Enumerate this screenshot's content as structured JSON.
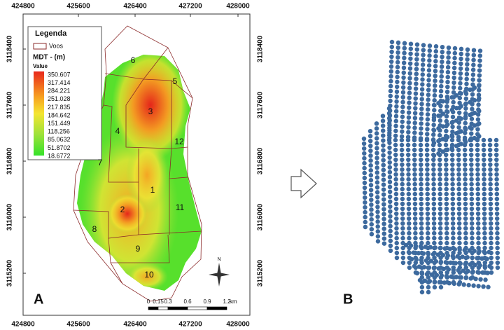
{
  "panel_a": {
    "label": "A",
    "x_ticks": [
      424800,
      425600,
      426400,
      427200,
      428000
    ],
    "y_ticks": [
      3118400,
      3117600,
      3116800,
      3116000,
      3115200
    ],
    "legend": {
      "title": "Legenda",
      "flights_label": "Voos",
      "dem_title": "MDT -  (m)",
      "value_title": "Value",
      "values": [
        "350.607",
        "317.414",
        "284.221",
        "251.028",
        "217.835",
        "184.642",
        "151.449",
        "118.256",
        "85.0632",
        "51.8702",
        "18.6772"
      ]
    },
    "flights": [
      1,
      2,
      3,
      4,
      5,
      6,
      7,
      8,
      9,
      10,
      11,
      12
    ],
    "north": "N",
    "scale": {
      "labels": [
        "0",
        "0.15",
        "0.3",
        "0.6",
        "0.9",
        "1.2"
      ],
      "unit": "km"
    }
  },
  "panel_b": {
    "label": "B"
  }
}
